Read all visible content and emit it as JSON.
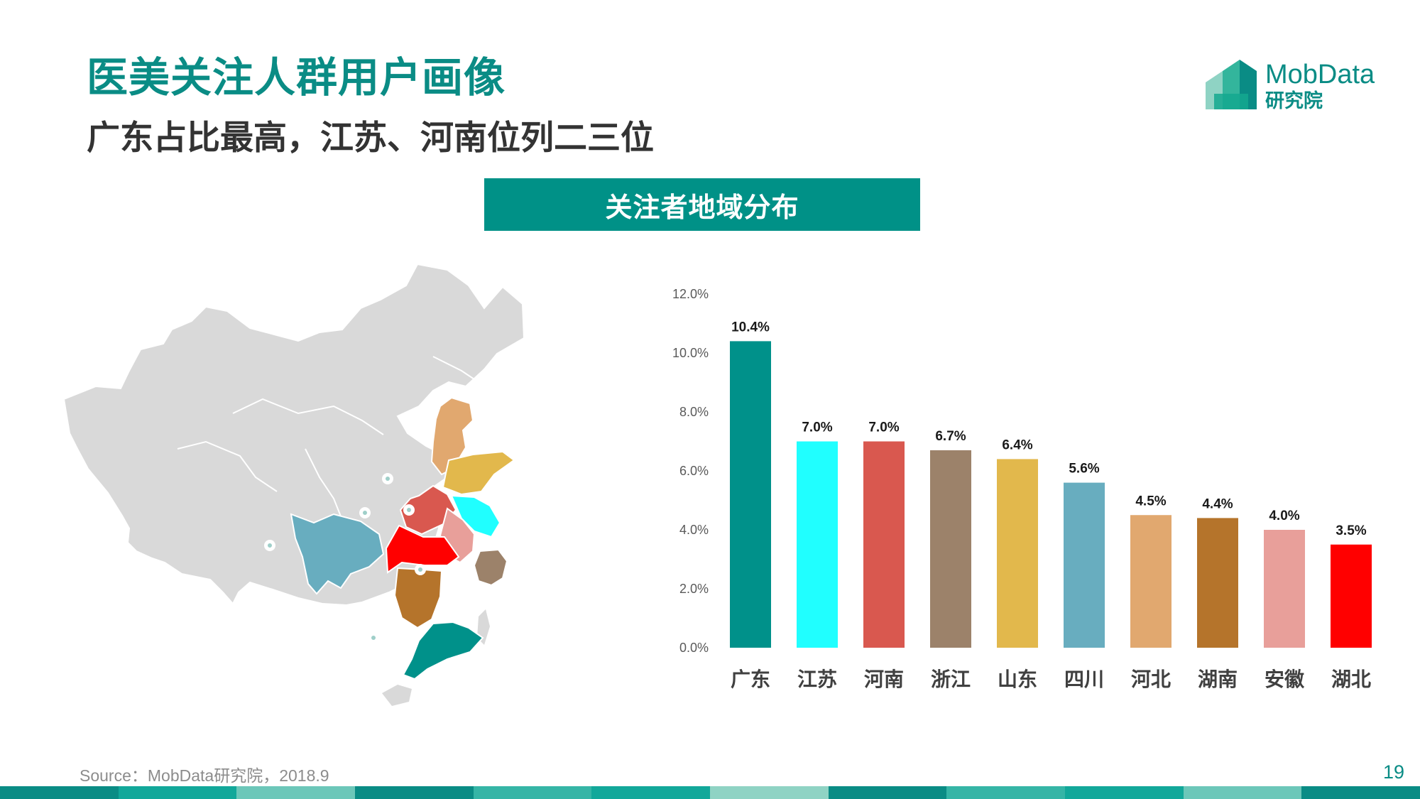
{
  "header": {
    "title": "医美关注人群用户画像",
    "subtitle": "广东占比最高，江苏、河南位列二三位"
  },
  "logo": {
    "name_en": "MobData",
    "name_cn": "研究院"
  },
  "banner": {
    "label": "关注者地域分布"
  },
  "colors": {
    "accent": "#009187",
    "map_base": "#d9d9d9",
    "series": [
      "#00918a",
      "#20ffff",
      "#d9584f",
      "#9c826a",
      "#e2b84c",
      "#68adbf",
      "#e1a86f",
      "#b5742b",
      "#e89f9a",
      "#ff0000"
    ]
  },
  "map": {
    "highlighted_provinces": [
      "广东",
      "江苏",
      "河南",
      "浙江",
      "山东",
      "四川",
      "河北",
      "湖南",
      "安徽",
      "湖北"
    ]
  },
  "chart_data": {
    "type": "bar",
    "categories": [
      "广东",
      "江苏",
      "河南",
      "浙江",
      "山东",
      "四川",
      "河北",
      "湖南",
      "安徽",
      "湖北"
    ],
    "values": [
      10.4,
      7.0,
      7.0,
      6.7,
      6.4,
      5.6,
      4.5,
      4.4,
      4.0,
      3.5
    ],
    "data_labels": [
      "10.4%",
      "7.0%",
      "7.0%",
      "6.7%",
      "6.4%",
      "5.6%",
      "4.5%",
      "4.4%",
      "4.0%",
      "3.5%"
    ],
    "y_ticks": [
      "0.0%",
      "2.0%",
      "4.0%",
      "6.0%",
      "8.0%",
      "10.0%",
      "12.0%"
    ],
    "ylim": [
      0,
      12
    ],
    "grid": false,
    "legend": "none"
  },
  "footer": {
    "source": "Source：MobData研究院，2018.9",
    "page_number": "19"
  }
}
